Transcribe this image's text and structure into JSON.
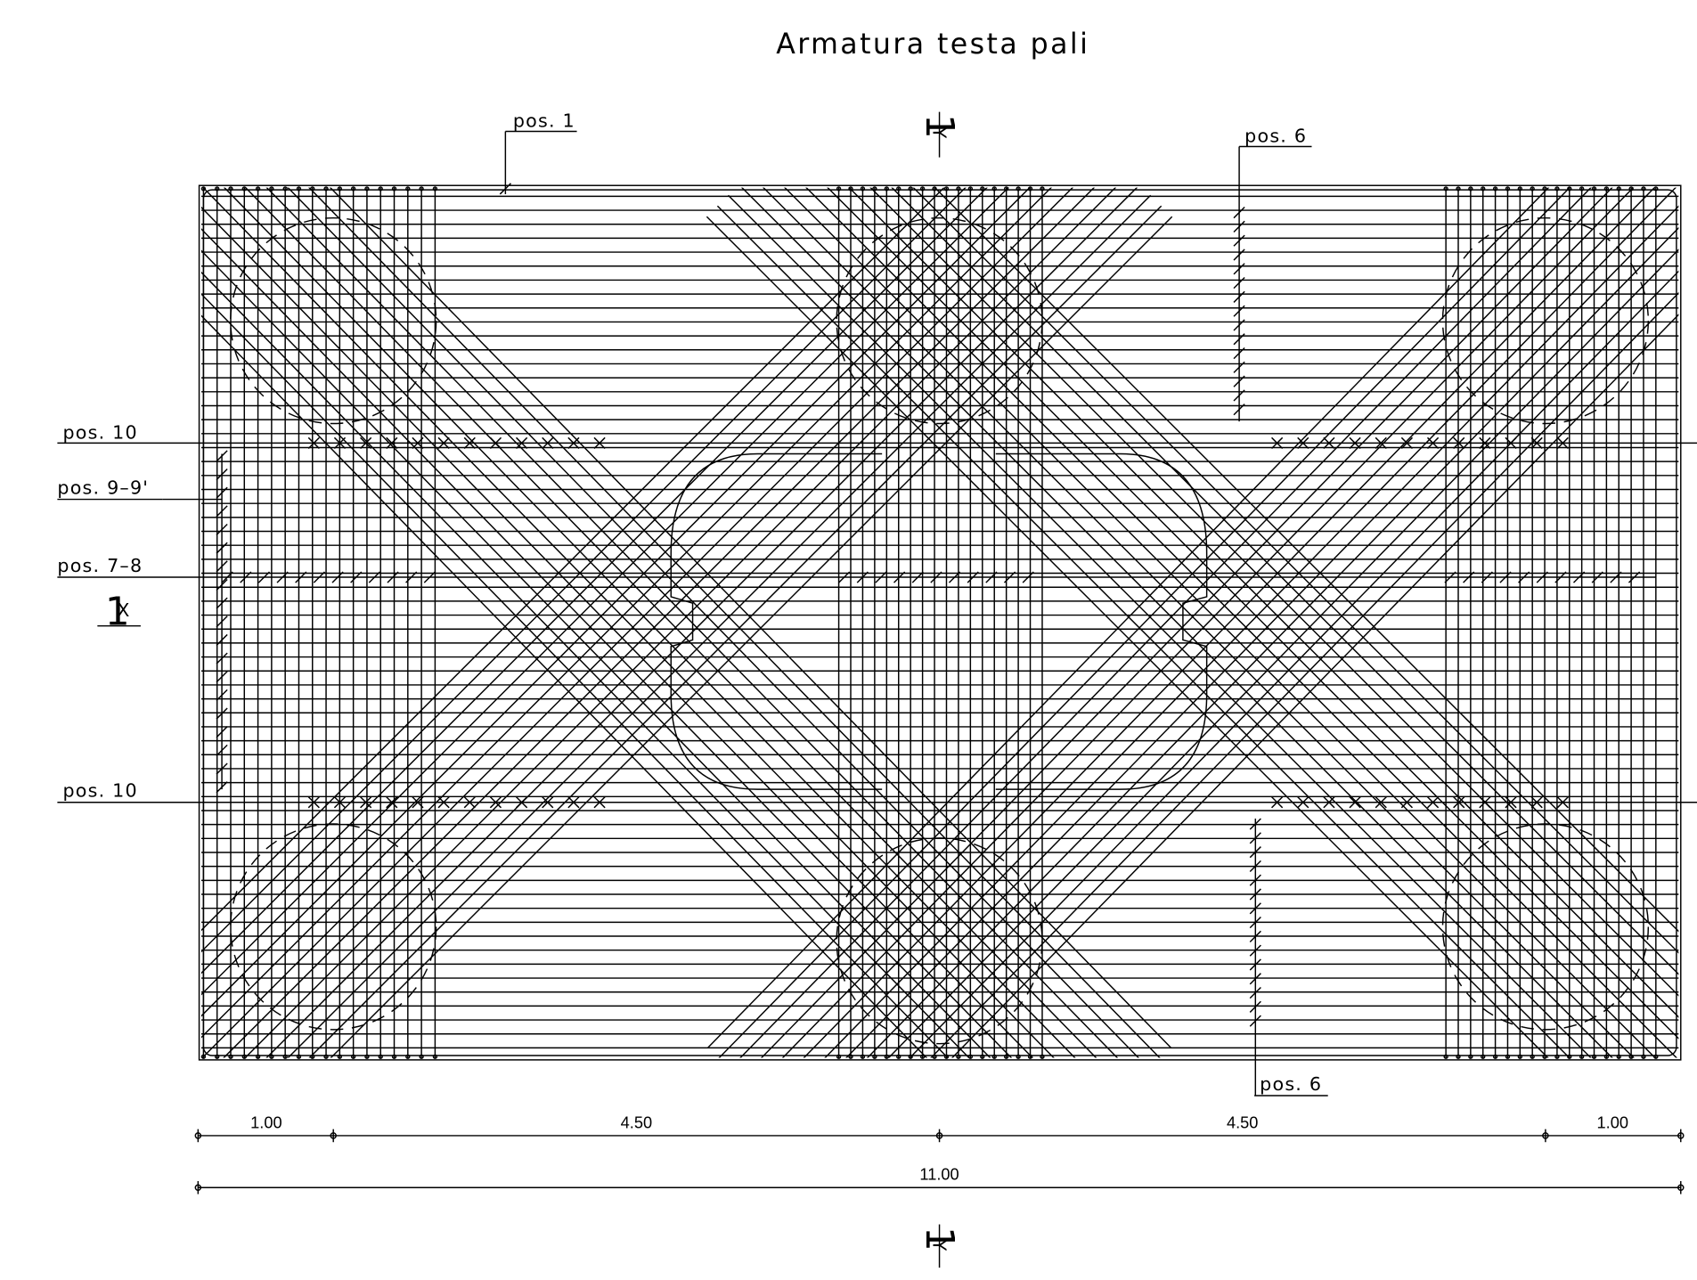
{
  "title": "Armatura testa pali",
  "labels": [
    "pos. 1",
    "pos. 6",
    "pos. 6",
    "pos. 10",
    "pos. 9–9'",
    "pos. 7–8",
    "pos. 10"
  ],
  "dimensions": [
    "1.00",
    "4.50",
    "4.50",
    "1.00"
  ],
  "total_dimension": "11.00",
  "sections": {
    "x": {
      "number": "1",
      "axis": "X"
    },
    "y_top": {
      "number": "1",
      "axis": "Y"
    },
    "y_bottom": {
      "number": "1",
      "axis": "Y"
    }
  }
}
